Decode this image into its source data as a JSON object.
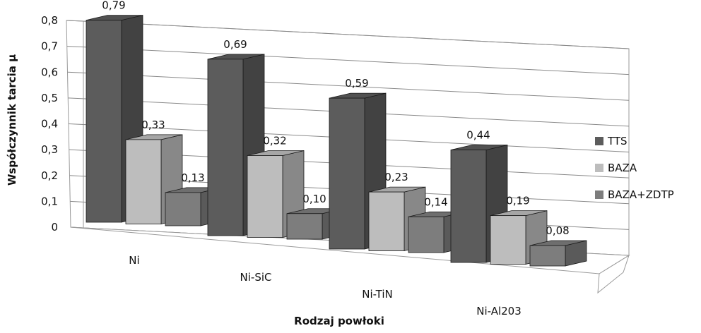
{
  "chart_data": {
    "type": "bar",
    "style": "3d-clustered-column",
    "categories": [
      "Ni",
      "Ni-SiC",
      "Ni-TiN",
      "Ni-Al203"
    ],
    "series": [
      {
        "name": "TTS",
        "values": [
          0.79,
          0.69,
          0.59,
          0.44
        ],
        "labels": [
          "0,79",
          "0,69",
          "0,59",
          "0,44"
        ],
        "color": "#5c5c5c"
      },
      {
        "name": "BAZA",
        "values": [
          0.33,
          0.32,
          0.23,
          0.19
        ],
        "labels": [
          "0,33",
          "0,32",
          "0,23",
          "0,19"
        ],
        "color": "#bdbdbd"
      },
      {
        "name": "BAZA+ZDTP",
        "values": [
          0.13,
          0.1,
          0.14,
          0.08
        ],
        "labels": [
          "0,13",
          "0,10",
          "0,14",
          "0,08"
        ],
        "color": "#7d7d7d"
      }
    ],
    "yticks": [
      "0",
      "0,1",
      "0,2",
      "0,3",
      "0,4",
      "0,5",
      "0,6",
      "0,7",
      "0,8"
    ],
    "ylim": [
      0,
      0.8
    ],
    "xlabel": "Rodzaj powłoki",
    "ylabel": "Współczynnik tarcia µ",
    "grid": true,
    "legend_position": "right"
  }
}
